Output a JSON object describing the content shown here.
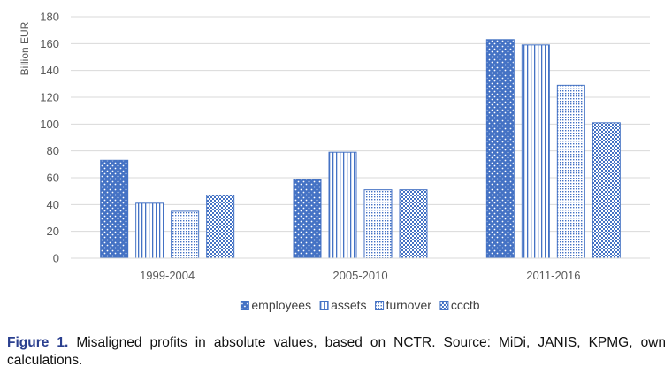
{
  "chart_data": {
    "type": "bar",
    "ylabel": "Billion EUR",
    "xlabel": "",
    "ylim": [
      0,
      180
    ],
    "yticks": [
      0,
      20,
      40,
      60,
      80,
      100,
      120,
      140,
      160,
      180
    ],
    "grid": true,
    "legend_position": "bottom",
    "categories": [
      "1999-2004",
      "2005-2010",
      "2011-2016"
    ],
    "series": [
      {
        "name": "employees",
        "values": [
          73,
          59,
          163
        ],
        "pattern": "dots",
        "color": "#4472c4"
      },
      {
        "name": "assets",
        "values": [
          41,
          79,
          159
        ],
        "pattern": "vertical-lines",
        "color": "#4472c4"
      },
      {
        "name": "turnover",
        "values": [
          35,
          51,
          129
        ],
        "pattern": "fine-dots",
        "color": "#4472c4"
      },
      {
        "name": "ccctb",
        "values": [
          47,
          51,
          101
        ],
        "pattern": "checker",
        "color": "#4472c4"
      }
    ]
  },
  "caption": {
    "label": "Figure 1.",
    "text": "Misaligned profits in absolute values, based on NCTR. Source: MiDi, JANIS, KPMG, own calculations."
  },
  "colors": {
    "accent": "#4472c4",
    "grid": "#d9d9d9",
    "caption_label": "#2a3f8f"
  }
}
